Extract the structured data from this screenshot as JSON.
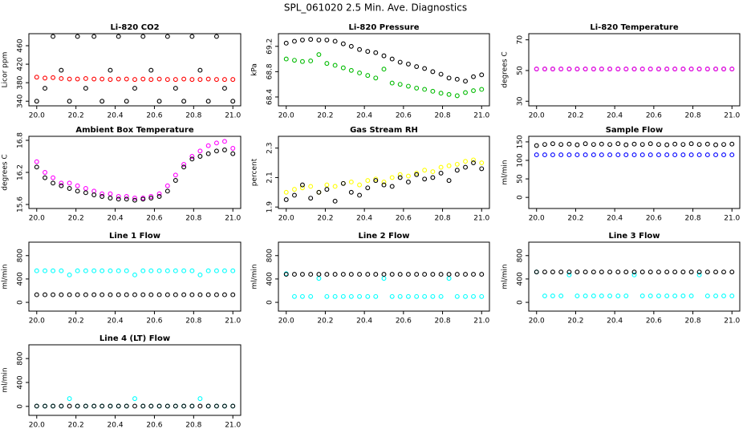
{
  "title": "SPL_061020  2.5 Min. Ave. Diagnostics",
  "chart_data": [
    {
      "type": "scatter",
      "title": "Li-820 CO2",
      "y_label": "Licor ppm",
      "x": [
        20.0,
        20.042,
        20.083,
        20.125,
        20.167,
        20.208,
        20.25,
        20.292,
        20.333,
        20.375,
        20.417,
        20.458,
        20.5,
        20.542,
        20.583,
        20.625,
        20.667,
        20.708,
        20.75,
        20.792,
        20.833,
        20.875,
        20.917,
        20.958,
        21.0
      ],
      "series": [
        {
          "color": "#000000",
          "values": [
            340,
            368,
            480,
            407,
            340,
            480,
            368,
            480,
            340,
            407,
            480,
            340,
            368,
            480,
            407,
            340,
            480,
            368,
            340,
            480,
            407,
            340,
            480,
            368,
            340
          ]
        },
        {
          "color": "#ff0000",
          "values": [
            392,
            390,
            391,
            389,
            388,
            388,
            389,
            388,
            388,
            387,
            388,
            388,
            387,
            388,
            387,
            388,
            387,
            387,
            388,
            387,
            387,
            388,
            387,
            387,
            387
          ]
        }
      ],
      "xlim": [
        19.96,
        21.04
      ],
      "xticks": [
        {
          "value": 20,
          "label": "20.0"
        },
        20.2,
        20.4,
        20.6,
        20.8,
        {
          "value": 21,
          "label": "21.0"
        }
      ],
      "ylim": [
        330,
        486
      ],
      "yticks": [
        340,
        380,
        420,
        460
      ]
    },
    {
      "type": "scatter",
      "title": "Li-820 Pressure",
      "y_label": "kPa",
      "x": [
        20.0,
        20.042,
        20.083,
        20.125,
        20.167,
        20.208,
        20.25,
        20.292,
        20.333,
        20.375,
        20.417,
        20.458,
        20.5,
        20.542,
        20.583,
        20.625,
        20.667,
        20.708,
        20.75,
        20.792,
        20.833,
        20.875,
        20.917,
        20.958,
        21.0
      ],
      "series": [
        {
          "color": "#000000",
          "values": [
            69.25,
            69.28,
            69.3,
            69.31,
            69.3,
            69.3,
            69.28,
            69.24,
            69.2,
            69.15,
            69.12,
            69.1,
            69.05,
            69.0,
            68.95,
            68.92,
            68.88,
            68.85,
            68.8,
            68.76,
            68.7,
            68.68,
            68.65,
            68.72,
            68.75
          ]
        },
        {
          "color": "#00bb00",
          "values": [
            69.0,
            68.98,
            68.96,
            68.97,
            69.07,
            68.93,
            68.9,
            68.86,
            68.82,
            68.78,
            68.74,
            68.7,
            68.84,
            68.62,
            68.6,
            68.57,
            68.54,
            68.52,
            68.49,
            68.46,
            68.44,
            68.42,
            68.47,
            68.5,
            68.52
          ]
        }
      ],
      "xlim": [
        19.96,
        21.04
      ],
      "xticks": [
        {
          "value": 20,
          "label": "20.0"
        },
        20.2,
        20.4,
        20.6,
        20.8,
        {
          "value": 21,
          "label": "21.0"
        }
      ],
      "ylim": [
        68.26,
        69.4
      ],
      "yticks": [
        68.4,
        68.8,
        69.2
      ]
    },
    {
      "type": "scatter",
      "title": "Li-820 Temperature",
      "y_label": "degrees C",
      "x": [
        20.0,
        20.042,
        20.083,
        20.125,
        20.167,
        20.208,
        20.25,
        20.292,
        20.333,
        20.375,
        20.417,
        20.458,
        20.5,
        20.542,
        20.583,
        20.625,
        20.667,
        20.708,
        20.75,
        20.792,
        20.833,
        20.875,
        20.917,
        20.958,
        21.0
      ],
      "series": [
        {
          "color": "#000000",
          "values": [
            51,
            51,
            51,
            51,
            51,
            51,
            51,
            51,
            51,
            51,
            51,
            51,
            51,
            51,
            51,
            51,
            51,
            51,
            51,
            51,
            51,
            51,
            51,
            51,
            51
          ]
        },
        {
          "color": "#ff00ff",
          "values": [
            51,
            51,
            51,
            51,
            51,
            51,
            51,
            51,
            51,
            51,
            51,
            51,
            51,
            51,
            51,
            51,
            51,
            51,
            51,
            51,
            51,
            51,
            51,
            51,
            51
          ]
        }
      ],
      "xlim": [
        19.96,
        21.04
      ],
      "xticks": [
        {
          "value": 20,
          "label": "20.0"
        },
        20.2,
        20.4,
        20.6,
        20.8,
        {
          "value": 21,
          "label": "21.0"
        }
      ],
      "ylim": [
        27,
        74
      ],
      "yticks": [
        30,
        50,
        70
      ]
    },
    {
      "type": "scatter",
      "title": "Ambient Box Temperature",
      "y_label": "degrees C",
      "x": [
        20.0,
        20.042,
        20.083,
        20.125,
        20.167,
        20.208,
        20.25,
        20.292,
        20.333,
        20.375,
        20.417,
        20.458,
        20.5,
        20.542,
        20.583,
        20.625,
        20.667,
        20.708,
        20.75,
        20.792,
        20.833,
        20.875,
        20.917,
        20.958,
        21.0
      ],
      "series": [
        {
          "color": "#ff00ff",
          "values": [
            16.4,
            16.2,
            16.1,
            16.0,
            16.0,
            15.95,
            15.9,
            15.85,
            15.8,
            15.8,
            15.75,
            15.75,
            15.72,
            15.72,
            15.75,
            15.8,
            15.95,
            16.15,
            16.35,
            16.5,
            16.6,
            16.7,
            16.75,
            16.78,
            16.65
          ]
        },
        {
          "color": "#000000",
          "values": [
            16.3,
            16.1,
            16.0,
            15.95,
            15.9,
            15.85,
            15.82,
            15.78,
            15.75,
            15.72,
            15.7,
            15.7,
            15.68,
            15.7,
            15.72,
            15.75,
            15.85,
            16.05,
            16.3,
            16.45,
            16.5,
            16.55,
            16.6,
            16.62,
            16.55
          ]
        }
      ],
      "xlim": [
        19.96,
        21.04
      ],
      "xticks": [
        {
          "value": 20,
          "label": "20.0"
        },
        20.2,
        20.4,
        20.6,
        20.8,
        {
          "value": 21,
          "label": "21.0"
        }
      ],
      "ylim": [
        15.525,
        16.875
      ],
      "yticks": [
        15.6,
        16.2,
        16.8
      ]
    },
    {
      "type": "scatter",
      "title": "Gas Stream RH",
      "y_label": "percent",
      "x": [
        20.0,
        20.042,
        20.083,
        20.125,
        20.167,
        20.208,
        20.25,
        20.292,
        20.333,
        20.375,
        20.417,
        20.458,
        20.5,
        20.542,
        20.583,
        20.625,
        20.667,
        20.708,
        20.75,
        20.792,
        20.833,
        20.875,
        20.917,
        20.958,
        21.0
      ],
      "series": [
        {
          "color": "#ffff00",
          "values": [
            2.0,
            2.02,
            2.03,
            2.04,
            2.0,
            2.05,
            2.04,
            2.06,
            2.07,
            2.05,
            2.08,
            2.09,
            2.07,
            2.1,
            2.12,
            2.11,
            2.13,
            2.15,
            2.14,
            2.17,
            2.18,
            2.19,
            2.21,
            2.22,
            2.2
          ]
        },
        {
          "color": "#000000",
          "values": [
            1.95,
            1.98,
            2.05,
            1.96,
            2.0,
            2.02,
            1.94,
            2.06,
            2.0,
            1.98,
            2.03,
            2.08,
            2.05,
            2.04,
            2.1,
            2.07,
            2.12,
            2.09,
            2.1,
            2.13,
            2.08,
            2.15,
            2.17,
            2.2,
            2.16
          ]
        }
      ],
      "xlim": [
        19.96,
        21.04
      ],
      "xticks": [
        {
          "value": 20,
          "label": "20.0"
        },
        20.2,
        20.4,
        20.6,
        20.8,
        {
          "value": 21,
          "label": "21.0"
        }
      ],
      "ylim": [
        1.89,
        2.38
      ],
      "yticks": [
        1.9,
        2.1,
        2.3
      ]
    },
    {
      "type": "scatter",
      "title": "Sample Flow",
      "y_label": "ml/min",
      "x": [
        20.0,
        20.042,
        20.083,
        20.125,
        20.167,
        20.208,
        20.25,
        20.292,
        20.333,
        20.375,
        20.417,
        20.458,
        20.5,
        20.542,
        20.583,
        20.625,
        20.667,
        20.708,
        20.75,
        20.792,
        20.833,
        20.875,
        20.917,
        20.958,
        21.0
      ],
      "series": [
        {
          "color": "#000000",
          "values": [
            140,
            143,
            145,
            143,
            144,
            142,
            145,
            143,
            144,
            143,
            145,
            142,
            144,
            143,
            145,
            143,
            142,
            144,
            143,
            145,
            143,
            144,
            142,
            143,
            144
          ]
        },
        {
          "color": "#0000ff",
          "values": [
            115,
            115,
            115,
            115,
            115,
            115,
            115,
            115,
            115,
            115,
            115,
            115,
            115,
            115,
            115,
            115,
            115,
            115,
            115,
            115,
            115,
            115,
            115,
            115,
            115
          ]
        }
      ],
      "xlim": [
        19.96,
        21.04
      ],
      "xticks": [
        {
          "value": 20,
          "label": "20.0"
        },
        20.2,
        20.4,
        20.6,
        20.8,
        {
          "value": 21,
          "label": "21.0"
        }
      ],
      "ylim": [
        -30,
        165
      ],
      "yticks": [
        0,
        50,
        100,
        150
      ]
    },
    {
      "type": "scatter",
      "title": "Line 1 Flow",
      "y_label": "ml/min",
      "x": [
        20.0,
        20.042,
        20.083,
        20.125,
        20.167,
        20.208,
        20.25,
        20.292,
        20.333,
        20.375,
        20.417,
        20.458,
        20.5,
        20.542,
        20.583,
        20.625,
        20.667,
        20.708,
        20.75,
        20.792,
        20.833,
        20.875,
        20.917,
        20.958,
        21.0
      ],
      "series": [
        {
          "color": "#00ffff",
          "values": [
            540,
            540,
            540,
            540,
            470,
            540,
            540,
            540,
            540,
            540,
            540,
            540,
            470,
            540,
            540,
            540,
            540,
            540,
            540,
            540,
            470,
            540,
            540,
            540,
            540
          ]
        },
        {
          "color": "#000000",
          "values": [
            130,
            130,
            130,
            130,
            130,
            130,
            130,
            130,
            130,
            130,
            130,
            130,
            130,
            130,
            130,
            130,
            130,
            130,
            130,
            130,
            130,
            130,
            130,
            130,
            130
          ]
        }
      ],
      "xlim": [
        19.96,
        21.04
      ],
      "xticks": [
        {
          "value": 20,
          "label": "20.0"
        },
        20.2,
        20.4,
        20.6,
        20.8,
        {
          "value": 21,
          "label": "21.0"
        }
      ],
      "ylim": [
        -150,
        1030
      ],
      "yticks": [
        0,
        400,
        800
      ]
    },
    {
      "type": "scatter",
      "title": "Line 2 Flow",
      "y_label": "ml/min",
      "x": [
        20.0,
        20.042,
        20.083,
        20.125,
        20.167,
        20.208,
        20.25,
        20.292,
        20.333,
        20.375,
        20.417,
        20.458,
        20.5,
        20.542,
        20.583,
        20.625,
        20.667,
        20.708,
        20.75,
        20.792,
        20.833,
        20.875,
        20.917,
        20.958,
        21.0
      ],
      "series": [
        {
          "color": "#00ffff",
          "values": [
            490,
            100,
            100,
            100,
            410,
            100,
            100,
            100,
            100,
            100,
            100,
            100,
            410,
            100,
            100,
            100,
            100,
            100,
            100,
            100,
            410,
            100,
            100,
            100,
            100
          ]
        },
        {
          "color": "#000000",
          "values": [
            480,
            480,
            480,
            480,
            480,
            480,
            480,
            480,
            480,
            480,
            480,
            480,
            480,
            480,
            480,
            480,
            480,
            480,
            480,
            480,
            480,
            480,
            480,
            480,
            480
          ]
        }
      ],
      "xlim": [
        19.96,
        21.04
      ],
      "xticks": [
        {
          "value": 20,
          "label": "20.0"
        },
        20.2,
        20.4,
        20.6,
        20.8,
        {
          "value": 21,
          "label": "21.0"
        }
      ],
      "ylim": [
        -150,
        1030
      ],
      "yticks": [
        0,
        400,
        800
      ]
    },
    {
      "type": "scatter",
      "title": "Line 3 Flow",
      "y_label": "ml/min",
      "x": [
        20.0,
        20.042,
        20.083,
        20.125,
        20.167,
        20.208,
        20.25,
        20.292,
        20.333,
        20.375,
        20.417,
        20.458,
        20.5,
        20.542,
        20.583,
        20.625,
        20.667,
        20.708,
        20.75,
        20.792,
        20.833,
        20.875,
        20.917,
        20.958,
        21.0
      ],
      "series": [
        {
          "color": "#00ffff",
          "values": [
            520,
            110,
            110,
            110,
            470,
            110,
            110,
            110,
            110,
            110,
            110,
            110,
            470,
            110,
            110,
            110,
            110,
            110,
            110,
            110,
            470,
            110,
            110,
            110,
            110
          ]
        },
        {
          "color": "#000000",
          "values": [
            520,
            520,
            520,
            520,
            520,
            520,
            520,
            520,
            520,
            520,
            520,
            520,
            520,
            520,
            520,
            520,
            520,
            520,
            520,
            520,
            520,
            520,
            520,
            520,
            520
          ]
        }
      ],
      "xlim": [
        19.96,
        21.04
      ],
      "xticks": [
        {
          "value": 20,
          "label": "20.0"
        },
        20.2,
        20.4,
        20.6,
        20.8,
        {
          "value": 21,
          "label": "21.0"
        }
      ],
      "ylim": [
        -150,
        1030
      ],
      "yticks": [
        0,
        400,
        800
      ]
    },
    {
      "type": "scatter",
      "title": "Line 4 (LT) Flow",
      "y_label": "ml/min",
      "x": [
        20.0,
        20.042,
        20.083,
        20.125,
        20.167,
        20.208,
        20.25,
        20.292,
        20.333,
        20.375,
        20.417,
        20.458,
        20.5,
        20.542,
        20.583,
        20.625,
        20.667,
        20.708,
        20.75,
        20.792,
        20.833,
        20.875,
        20.917,
        20.958,
        21.0
      ],
      "series": [
        {
          "color": "#00ffff",
          "values": [
            5,
            5,
            5,
            5,
            130,
            5,
            5,
            5,
            5,
            5,
            5,
            5,
            130,
            5,
            5,
            5,
            5,
            5,
            5,
            5,
            130,
            5,
            5,
            5,
            5
          ]
        },
        {
          "color": "#000000",
          "values": [
            5,
            5,
            5,
            5,
            5,
            5,
            5,
            5,
            5,
            5,
            5,
            5,
            5,
            5,
            5,
            5,
            5,
            5,
            5,
            5,
            5,
            5,
            5,
            5,
            5
          ]
        }
      ],
      "xlim": [
        19.96,
        21.04
      ],
      "xticks": [
        {
          "value": 20,
          "label": "20.0"
        },
        20.2,
        20.4,
        20.6,
        20.8,
        {
          "value": 21,
          "label": "21.0"
        }
      ],
      "ylim": [
        -150,
        1030
      ],
      "yticks": [
        0,
        400,
        800
      ]
    }
  ]
}
